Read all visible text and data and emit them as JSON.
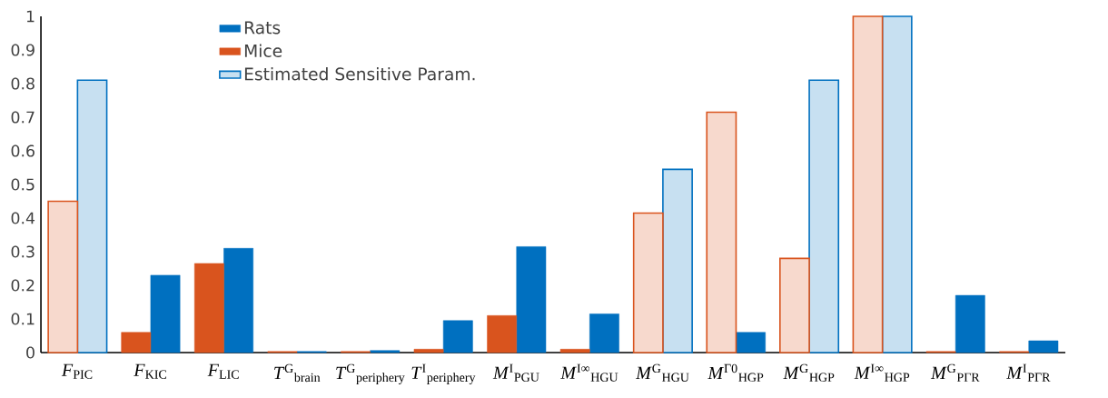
{
  "chart_data": {
    "type": "bar",
    "categories": [
      "*F*$_{PIC}$",
      "*F*$_{KIC}$",
      "*F*$_{LIC}$",
      "*T*$^{G}$$_{brain}$",
      "*T*$^{G}$$_{periphery}$",
      "*T*$^{I}$$_{periphery}$",
      "*M*$^{I}$$_{PGU}$",
      "*M*$^{I∞}$$_{HGU}$",
      "*M*$^{G}$$_{HGU}$",
      "*M*$^{Γ0}$$_{HGP}$",
      "*M*$^{G}$$_{HGP}$",
      "*M*$^{I∞}$$_{HGP}$",
      "*M*$^{G}$$_{PΓR}$",
      "*M*$^{I}$$_{PΓR}$"
    ],
    "series": [
      {
        "name": "Rats",
        "color": "#0070c0",
        "values": [
          null,
          0.23,
          0.31,
          0.003,
          0.006,
          0.095,
          0.315,
          0.115,
          null,
          0.06,
          null,
          null,
          0.17,
          0.035
        ]
      },
      {
        "name": "Mice",
        "color": "#d9541e",
        "values": [
          null,
          0.06,
          0.265,
          0.003,
          0.003,
          0.01,
          0.11,
          0.01,
          null,
          null,
          null,
          null,
          0.003,
          0.003
        ]
      },
      {
        "name": "Estimated Sensitive Param.",
        "color": "#0070c0",
        "values": [
          0.81,
          null,
          null,
          null,
          null,
          null,
          null,
          null,
          0.545,
          null,
          0.81,
          1.0,
          null,
          null
        ]
      },
      {
        "color": "#d9541e",
        "values": [
          0.45,
          null,
          null,
          null,
          null,
          null,
          null,
          null,
          0.415,
          0.715,
          0.28,
          1.0,
          null,
          null
        ]
      }
    ],
    "ylim": [
      0,
      1
    ],
    "yticks": [
      0,
      0.1,
      0.2,
      0.3,
      0.4,
      0.5,
      0.6,
      0.7,
      0.8,
      0.9,
      1
    ],
    "grid": false,
    "legend": "top"
  }
}
